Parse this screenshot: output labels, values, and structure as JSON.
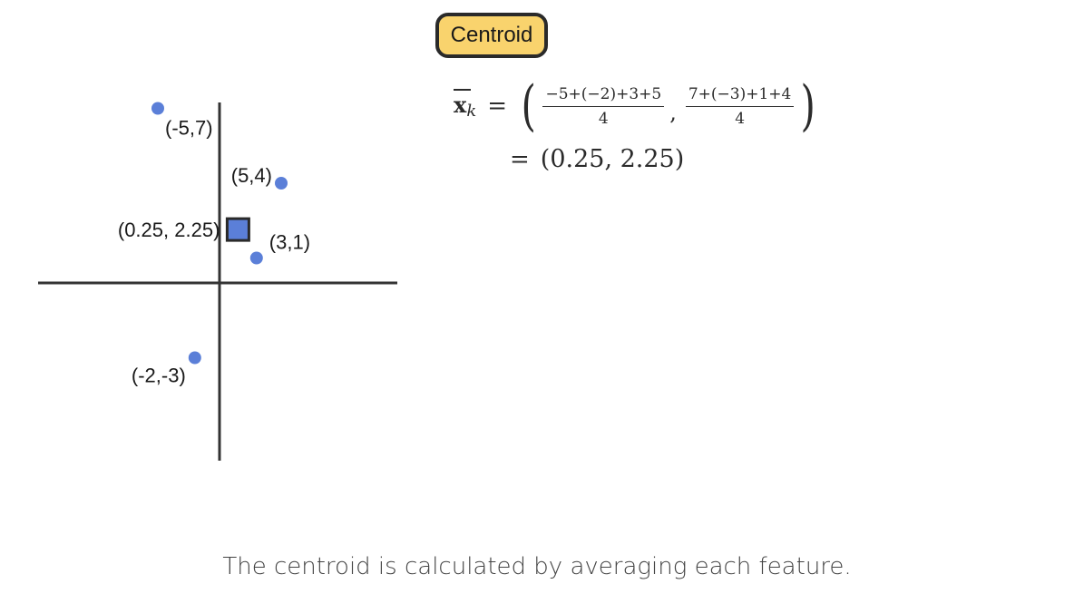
{
  "badge": {
    "label": "Centroid"
  },
  "points": [
    {
      "x": -5,
      "y": 7,
      "label": "(-5,7)"
    },
    {
      "x": 5,
      "y": 4,
      "label": "(5,4)"
    },
    {
      "x": 3,
      "y": 1,
      "label": "(3,1)"
    },
    {
      "x": -2,
      "y": -3,
      "label": "(-2,-3)"
    }
  ],
  "centroid": {
    "x": 0.25,
    "y": 2.25,
    "label": "(0.25, 2.25)"
  },
  "formula": {
    "lhs": "x",
    "lhs_sub": "k",
    "equals": "=",
    "frac1_num": "−5+(−2)+3+5",
    "frac1_den": "4",
    "frac2_num": "7+(−3)+1+4",
    "frac2_den": "4",
    "result": "(0.25, 2.25)"
  },
  "caption": "The centroid is calculated by averaging each feature.",
  "colors": {
    "point": "#5b7fd8",
    "centroid_fill": "#5b7fd8",
    "badge": "#f9d36d",
    "axis": "#333333"
  }
}
